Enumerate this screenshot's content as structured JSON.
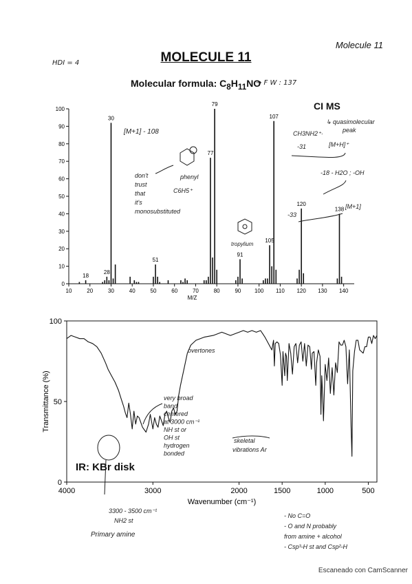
{
  "header": {
    "corner_tag": "Molecule 11",
    "title": "MOLECULE 11",
    "formula": "Molecular formula: C8H11NO",
    "formula_parts": {
      "prefix": "Molecular formula: C",
      "c_count": "8",
      "h": "H",
      "h_count": "11",
      "suffix": "NO"
    },
    "ms_mode": "CI MS",
    "ir_mode": "IR: KBr disk",
    "watermark": "Escaneado con CamScanner"
  },
  "notes": {
    "hdi": "HDI = 4",
    "fw": "→ F W : 137",
    "mplus1_108": "[M+1] - 108",
    "quasi_line1": "↳ quasimolecular",
    "quasi_line2": "peak",
    "mplus_h": "[M+H]⁺",
    "ch3nh2_line1": "CH3NH2⁺·",
    "ch3nh2_line2": "-31",
    "loss18": "-18  - H2O ; -OH",
    "loss33": "-33",
    "mplus1_138": "[M+1]",
    "phenyl": "phenyl",
    "c6h5": "C6H5⁺",
    "dont_trust": [
      "don't",
      "trust",
      "that",
      "it's",
      "monosubstituted"
    ],
    "tropylium": "tropylium",
    "very_broad": [
      "very broad",
      "band",
      "centered",
      "at 3000 cm⁻¹",
      "NH st or",
      "OH st",
      "hydrogen",
      "bonded"
    ],
    "overtones": "overtones",
    "skeletal": [
      "skeletal",
      "vibrations Ar"
    ],
    "nh2_region": [
      "3300 - 3500 cm⁻¹",
      "NH2 st",
      "Primary amine"
    ],
    "conclusions": [
      "- No   C=O",
      "- O and N probably",
      "from amine + alcohol",
      "- Csp³-H st and Csp²-H"
    ]
  },
  "chart_data": [
    {
      "type": "bar",
      "title": "",
      "xlabel": "M/Z",
      "ylabel": "",
      "xlim": [
        10,
        145
      ],
      "ylim": [
        0,
        100
      ],
      "x_ticks": [
        10,
        20,
        30,
        40,
        50,
        60,
        70,
        80,
        90,
        100,
        110,
        120,
        130,
        140
      ],
      "y_ticks": [
        0,
        10,
        20,
        30,
        40,
        50,
        60,
        70,
        80,
        90,
        100
      ],
      "peaks": [
        {
          "x": 15,
          "y": 1
        },
        {
          "x": 18,
          "y": 2
        },
        {
          "x": 26,
          "y": 1
        },
        {
          "x": 27,
          "y": 2
        },
        {
          "x": 28,
          "y": 4
        },
        {
          "x": 29,
          "y": 2
        },
        {
          "x": 30,
          "y": 92
        },
        {
          "x": 31,
          "y": 3
        },
        {
          "x": 32,
          "y": 11
        },
        {
          "x": 39,
          "y": 4
        },
        {
          "x": 41,
          "y": 2
        },
        {
          "x": 42,
          "y": 1
        },
        {
          "x": 43,
          "y": 1
        },
        {
          "x": 50,
          "y": 4
        },
        {
          "x": 51,
          "y": 11
        },
        {
          "x": 52,
          "y": 4
        },
        {
          "x": 53,
          "y": 1
        },
        {
          "x": 57,
          "y": 2
        },
        {
          "x": 63,
          "y": 2
        },
        {
          "x": 64,
          "y": 1
        },
        {
          "x": 65,
          "y": 3
        },
        {
          "x": 66,
          "y": 2
        },
        {
          "x": 74,
          "y": 2
        },
        {
          "x": 75,
          "y": 2
        },
        {
          "x": 76,
          "y": 4
        },
        {
          "x": 77,
          "y": 72
        },
        {
          "x": 78,
          "y": 15
        },
        {
          "x": 79,
          "y": 100
        },
        {
          "x": 80,
          "y": 8
        },
        {
          "x": 89,
          "y": 2
        },
        {
          "x": 90,
          "y": 4
        },
        {
          "x": 91,
          "y": 14
        },
        {
          "x": 92,
          "y": 3
        },
        {
          "x": 102,
          "y": 2
        },
        {
          "x": 103,
          "y": 3
        },
        {
          "x": 104,
          "y": 3
        },
        {
          "x": 105,
          "y": 22
        },
        {
          "x": 106,
          "y": 10
        },
        {
          "x": 107,
          "y": 93
        },
        {
          "x": 108,
          "y": 8
        },
        {
          "x": 118,
          "y": 3
        },
        {
          "x": 119,
          "y": 8
        },
        {
          "x": 120,
          "y": 43
        },
        {
          "x": 121,
          "y": 6
        },
        {
          "x": 137,
          "y": 3
        },
        {
          "x": 138,
          "y": 40
        },
        {
          "x": 139,
          "y": 4
        }
      ],
      "peak_labels": [
        {
          "x": 18,
          "text": "18"
        },
        {
          "x": 28,
          "text": "28"
        },
        {
          "x": 30,
          "text": "30"
        },
        {
          "x": 51,
          "text": "51"
        },
        {
          "x": 77,
          "text": "77"
        },
        {
          "x": 79,
          "text": "79"
        },
        {
          "x": 91,
          "text": "91"
        },
        {
          "x": 105,
          "text": "105"
        },
        {
          "x": 107,
          "text": "107"
        },
        {
          "x": 120,
          "text": "120"
        },
        {
          "x": 138,
          "text": "138"
        }
      ]
    },
    {
      "type": "line",
      "title": "",
      "xlabel": "Wavenumber (cm⁻¹)",
      "ylabel": "Transmittance (%)",
      "xlim": [
        4000,
        400
      ],
      "ylim": [
        0,
        100
      ],
      "x_ticks": [
        4000,
        3000,
        2000,
        1500,
        1000,
        500
      ],
      "y_ticks": [
        0,
        50,
        100
      ],
      "series": [
        {
          "x": [
            4000,
            3950,
            3900,
            3850,
            3800,
            3750,
            3700,
            3650,
            3600,
            3550,
            3520,
            3480,
            3440,
            3400,
            3370,
            3340,
            3320,
            3300,
            3280,
            3260,
            3240,
            3220,
            3200,
            3180,
            3160,
            3120,
            3080,
            3050,
            3030,
            3000,
            2980,
            2960,
            2940,
            2920,
            2900,
            2880,
            2860,
            2840,
            2820,
            2800,
            2780,
            2760,
            2740,
            2720,
            2700,
            2680,
            2660,
            2640,
            2620,
            2600,
            2560,
            2500,
            2400,
            2300,
            2200,
            2100,
            2000,
            1950,
            1900,
            1850,
            1800,
            1750,
            1700,
            1660,
            1620,
            1600,
            1590,
            1580,
            1560,
            1540,
            1520,
            1500,
            1490,
            1470,
            1460,
            1450,
            1440,
            1420,
            1400,
            1380,
            1360,
            1340,
            1320,
            1300,
            1280,
            1260,
            1240,
            1220,
            1200,
            1180,
            1160,
            1150,
            1130,
            1110,
            1100,
            1080,
            1060,
            1050,
            1040,
            1030,
            1020,
            1000,
            980,
            960,
            940,
            920,
            900,
            880,
            860,
            840,
            820,
            800,
            780,
            760,
            740,
            720,
            700,
            690,
            680,
            660,
            640,
            620,
            600,
            580,
            560,
            540,
            520,
            500,
            480,
            460,
            440,
            420,
            400
          ],
          "y": [
            89,
            91,
            90,
            89,
            89,
            87,
            86,
            84,
            80,
            74,
            70,
            66,
            62,
            57,
            52,
            47,
            43,
            40,
            49,
            42,
            33,
            44,
            36,
            41,
            40,
            34,
            31,
            36,
            42,
            33,
            40,
            36,
            34,
            41,
            38,
            35,
            42,
            44,
            40,
            37,
            44,
            46,
            42,
            44,
            54,
            60,
            65,
            70,
            75,
            80,
            85,
            88,
            90,
            91,
            93,
            91,
            93,
            94,
            93,
            94,
            93,
            94,
            90,
            86,
            82,
            88,
            72,
            86,
            87,
            86,
            79,
            60,
            81,
            66,
            80,
            78,
            63,
            86,
            80,
            67,
            84,
            86,
            74,
            85,
            87,
            75,
            86,
            72,
            85,
            84,
            70,
            80,
            81,
            60,
            74,
            82,
            78,
            42,
            66,
            54,
            38,
            73,
            63,
            77,
            55,
            71,
            54,
            74,
            68,
            87,
            85,
            85,
            88,
            84,
            61,
            82,
            35,
            16,
            69,
            81,
            88,
            88,
            82,
            81,
            80,
            84,
            84,
            90,
            90,
            86,
            91,
            89,
            91
          ]
        }
      ]
    }
  ]
}
